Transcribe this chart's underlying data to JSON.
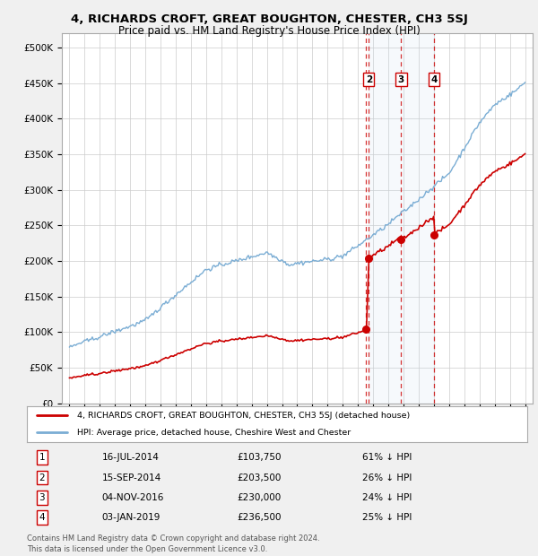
{
  "title1": "4, RICHARDS CROFT, GREAT BOUGHTON, CHESTER, CH3 5SJ",
  "title2": "Price paid vs. HM Land Registry's House Price Index (HPI)",
  "transactions": [
    {
      "num": 1,
      "date_str": "16-JUL-2014",
      "date_x": 2014.54,
      "price": 103750,
      "label": "61% ↓ HPI"
    },
    {
      "num": 2,
      "date_str": "15-SEP-2014",
      "date_x": 2014.71,
      "price": 203500,
      "label": "26% ↓ HPI"
    },
    {
      "num": 3,
      "date_str": "04-NOV-2016",
      "date_x": 2016.84,
      "price": 230000,
      "label": "24% ↓ HPI"
    },
    {
      "num": 4,
      "date_str": "03-JAN-2019",
      "date_x": 2019.01,
      "price": 236500,
      "label": "25% ↓ HPI"
    }
  ],
  "legend_property": "4, RICHARDS CROFT, GREAT BOUGHTON, CHESTER, CH3 5SJ (detached house)",
  "legend_hpi": "HPI: Average price, detached house, Cheshire West and Chester",
  "footer1": "Contains HM Land Registry data © Crown copyright and database right 2024.",
  "footer2": "This data is licensed under the Open Government Licence v3.0.",
  "hpi_color": "#7aadd4",
  "hpi_fill_color": "#c5ddf0",
  "property_color": "#cc0000",
  "vline_color": "#cc0000",
  "marker_color": "#cc0000",
  "box_color": "#cc0000",
  "ylim_min": 0,
  "ylim_max": 520000,
  "xlim_min": 1994.5,
  "xlim_max": 2025.5,
  "yticks": [
    0,
    50000,
    100000,
    150000,
    200000,
    250000,
    300000,
    350000,
    400000,
    450000,
    500000
  ],
  "ytick_labels": [
    "£0",
    "£50K",
    "£100K",
    "£150K",
    "£200K",
    "£250K",
    "£300K",
    "£350K",
    "£400K",
    "£450K",
    "£500K"
  ],
  "xticks": [
    1995,
    1996,
    1997,
    1998,
    1999,
    2000,
    2001,
    2002,
    2003,
    2004,
    2005,
    2006,
    2007,
    2008,
    2009,
    2010,
    2011,
    2012,
    2013,
    2014,
    2015,
    2016,
    2017,
    2018,
    2019,
    2020,
    2021,
    2022,
    2023,
    2024,
    2025
  ],
  "background_color": "#f0f0f0",
  "plot_bg_color": "#ffffff",
  "table_row_data": [
    [
      "1",
      "16-JUL-2014",
      "£103,750",
      "61% ↓ HPI"
    ],
    [
      "2",
      "15-SEP-2014",
      "£203,500",
      "26% ↓ HPI"
    ],
    [
      "3",
      "04-NOV-2016",
      "£230,000",
      "24% ↓ HPI"
    ],
    [
      "4",
      "03-JAN-2019",
      "£236,500",
      "25% ↓ HPI"
    ]
  ]
}
